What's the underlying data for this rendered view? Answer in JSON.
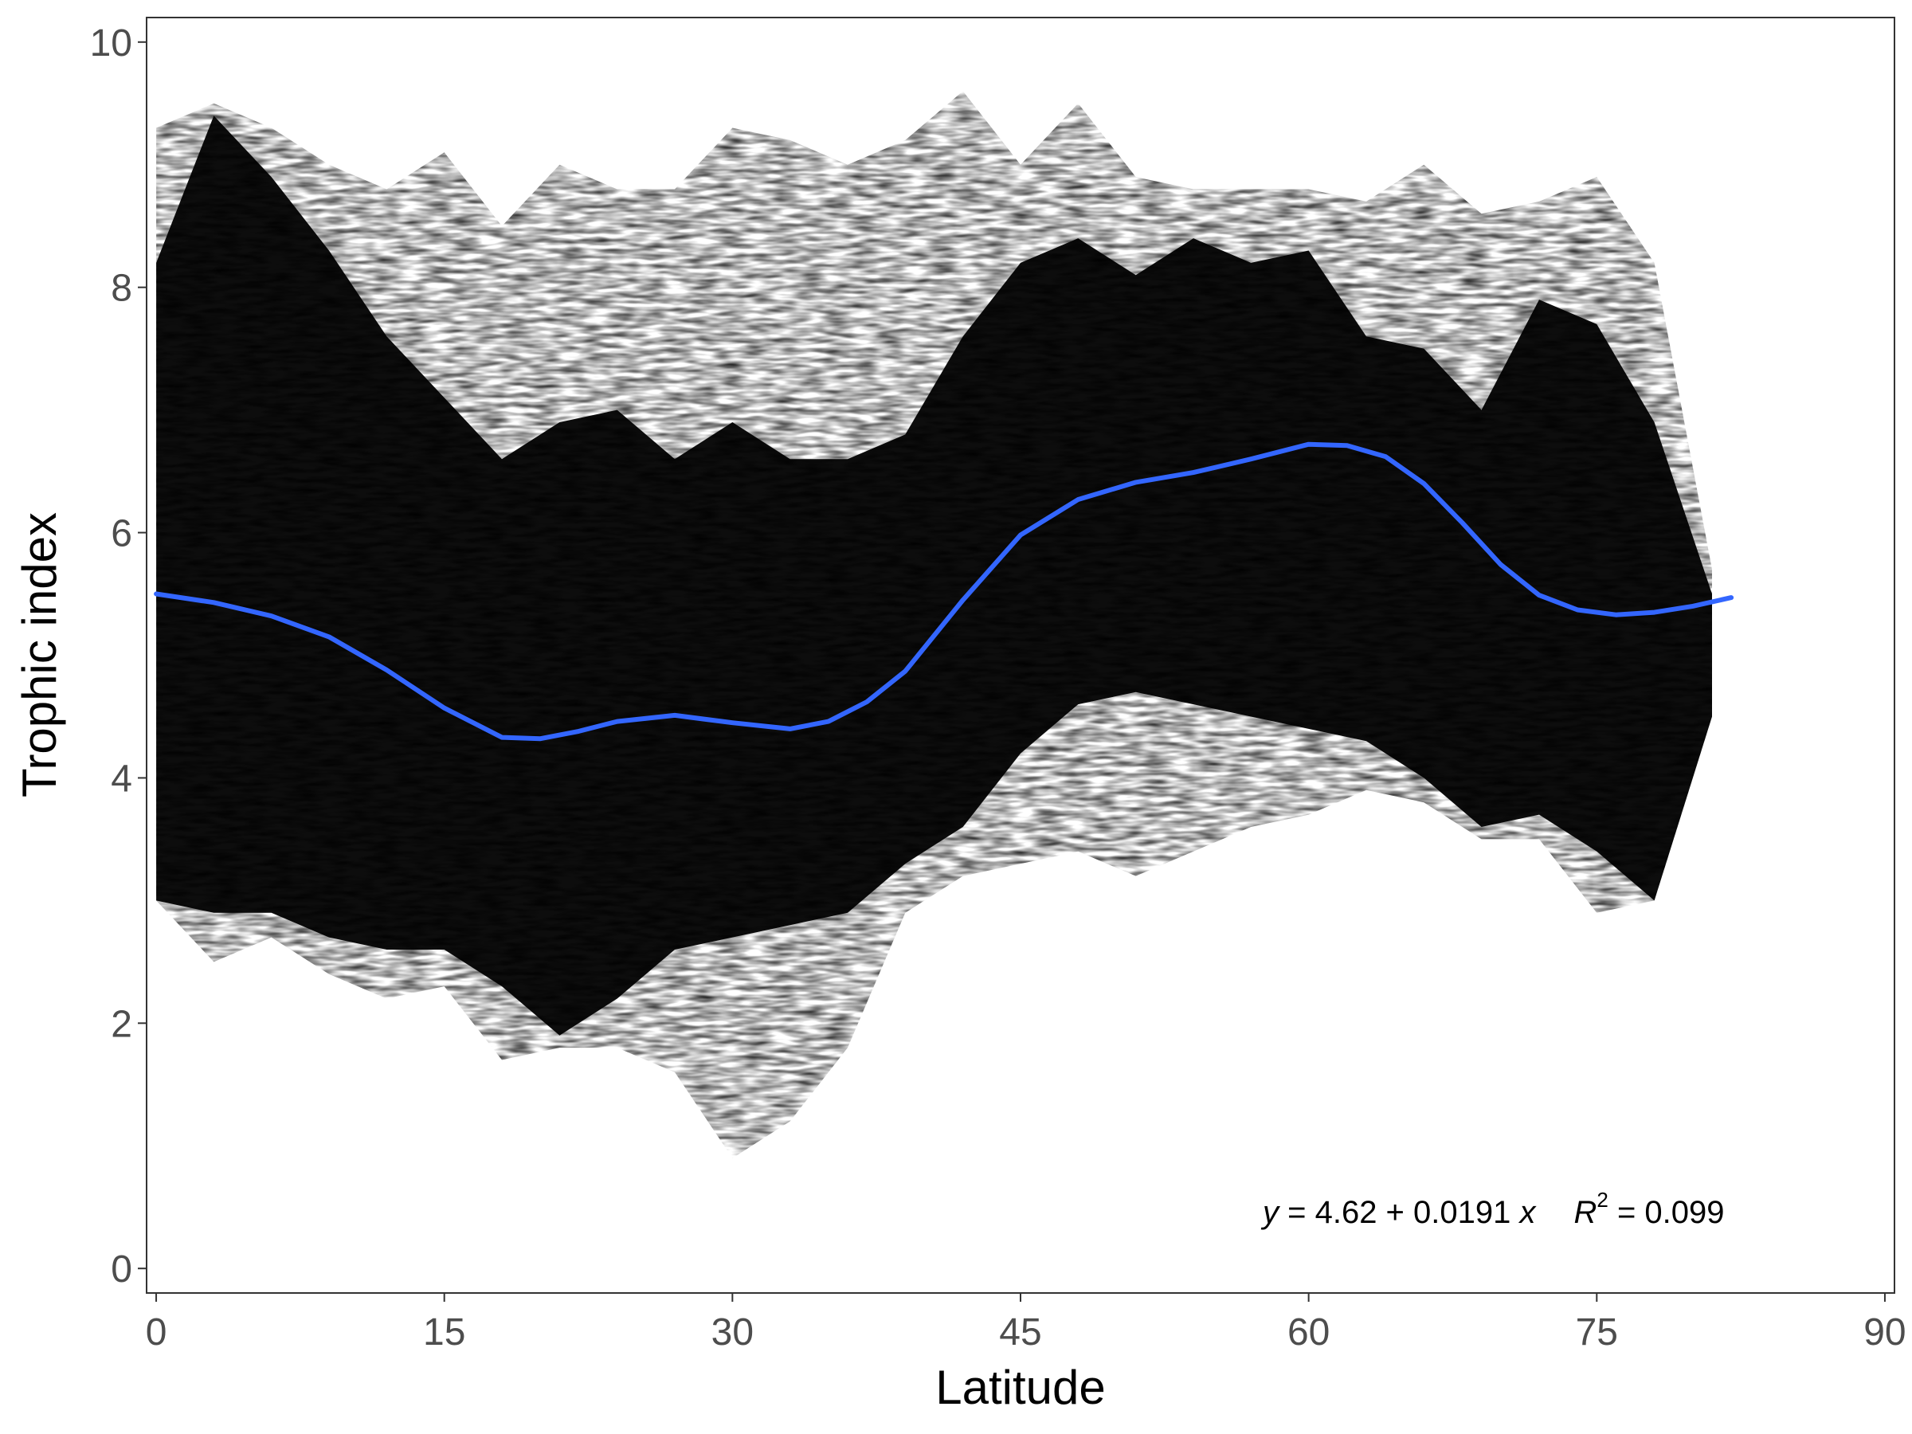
{
  "chart_data": {
    "type": "scatter",
    "title": "",
    "xlabel": "Latitude",
    "ylabel": "Trophic index",
    "xlim": [
      -0.5,
      90.5
    ],
    "ylim": [
      -0.2,
      10.2
    ],
    "x_ticks": [
      0,
      15,
      30,
      45,
      60,
      75,
      90
    ],
    "y_ticks": [
      0,
      2,
      4,
      6,
      8,
      10
    ],
    "x_tick_labels": [
      "0",
      "15",
      "30",
      "45",
      "60",
      "75",
      "90"
    ],
    "y_tick_labels": [
      "0",
      "2",
      "4",
      "6",
      "8",
      "10"
    ],
    "grid": false,
    "point_color": "#000000",
    "fit_color": "#3366FF",
    "annotation": {
      "y_var": "y",
      "eq_rest": " = 4.62 + 0.0191 ",
      "x_var": "x",
      "r_var": "R",
      "r_exp": "2",
      "r_rest": " = 0.099"
    },
    "point_envelope": {
      "lat": [
        0,
        3,
        6,
        9,
        12,
        15,
        18,
        21,
        24,
        27,
        30,
        33,
        36,
        39,
        42,
        45,
        48,
        51,
        54,
        57,
        60,
        63,
        66,
        69,
        72,
        75,
        78,
        81
      ],
      "dense_low": [
        3.0,
        2.9,
        2.9,
        2.7,
        2.6,
        2.6,
        2.3,
        1.9,
        2.2,
        2.6,
        2.7,
        2.8,
        2.9,
        3.3,
        3.6,
        4.2,
        4.6,
        4.7,
        4.6,
        4.5,
        4.4,
        4.3,
        4.0,
        3.6,
        3.7,
        3.4,
        3.0,
        4.5
      ],
      "dense_high": [
        8.2,
        9.4,
        8.9,
        8.3,
        7.6,
        7.1,
        6.6,
        6.9,
        7.0,
        6.6,
        6.9,
        6.6,
        6.6,
        6.8,
        7.6,
        8.2,
        8.4,
        8.1,
        8.4,
        8.2,
        8.3,
        7.6,
        7.5,
        7.0,
        7.9,
        7.7,
        6.9,
        5.5
      ],
      "faint_low": [
        3.0,
        2.5,
        2.7,
        2.4,
        2.2,
        2.3,
        1.7,
        1.8,
        1.8,
        1.6,
        0.9,
        1.2,
        1.8,
        2.9,
        3.2,
        3.3,
        3.4,
        3.2,
        3.4,
        3.6,
        3.7,
        3.9,
        3.8,
        3.5,
        3.5,
        2.9,
        3.0,
        4.5
      ],
      "faint_high": [
        9.3,
        9.5,
        9.3,
        9.0,
        8.8,
        9.1,
        8.5,
        9.0,
        8.8,
        8.8,
        9.3,
        9.2,
        9.0,
        9.2,
        9.6,
        9.0,
        9.5,
        8.9,
        8.8,
        8.8,
        8.8,
        8.7,
        9.0,
        8.6,
        8.7,
        8.9,
        8.2,
        5.7
      ]
    },
    "series": [
      {
        "type": "smooth",
        "x": [
          0,
          3,
          6,
          9,
          12,
          15,
          18,
          20,
          22,
          24,
          27,
          30,
          33,
          35,
          37,
          39,
          42,
          45,
          48,
          51,
          54,
          57,
          60,
          62,
          64,
          66,
          68,
          70,
          72,
          74,
          76,
          78,
          80,
          82
        ],
        "y": [
          5.5,
          5.43,
          5.32,
          5.15,
          4.88,
          4.57,
          4.33,
          4.32,
          4.38,
          4.46,
          4.51,
          4.45,
          4.4,
          4.46,
          4.62,
          4.87,
          5.45,
          5.98,
          6.27,
          6.41,
          6.49,
          6.6,
          6.72,
          6.71,
          6.62,
          6.4,
          6.08,
          5.74,
          5.49,
          5.37,
          5.33,
          5.35,
          5.4,
          5.47
        ]
      }
    ]
  }
}
